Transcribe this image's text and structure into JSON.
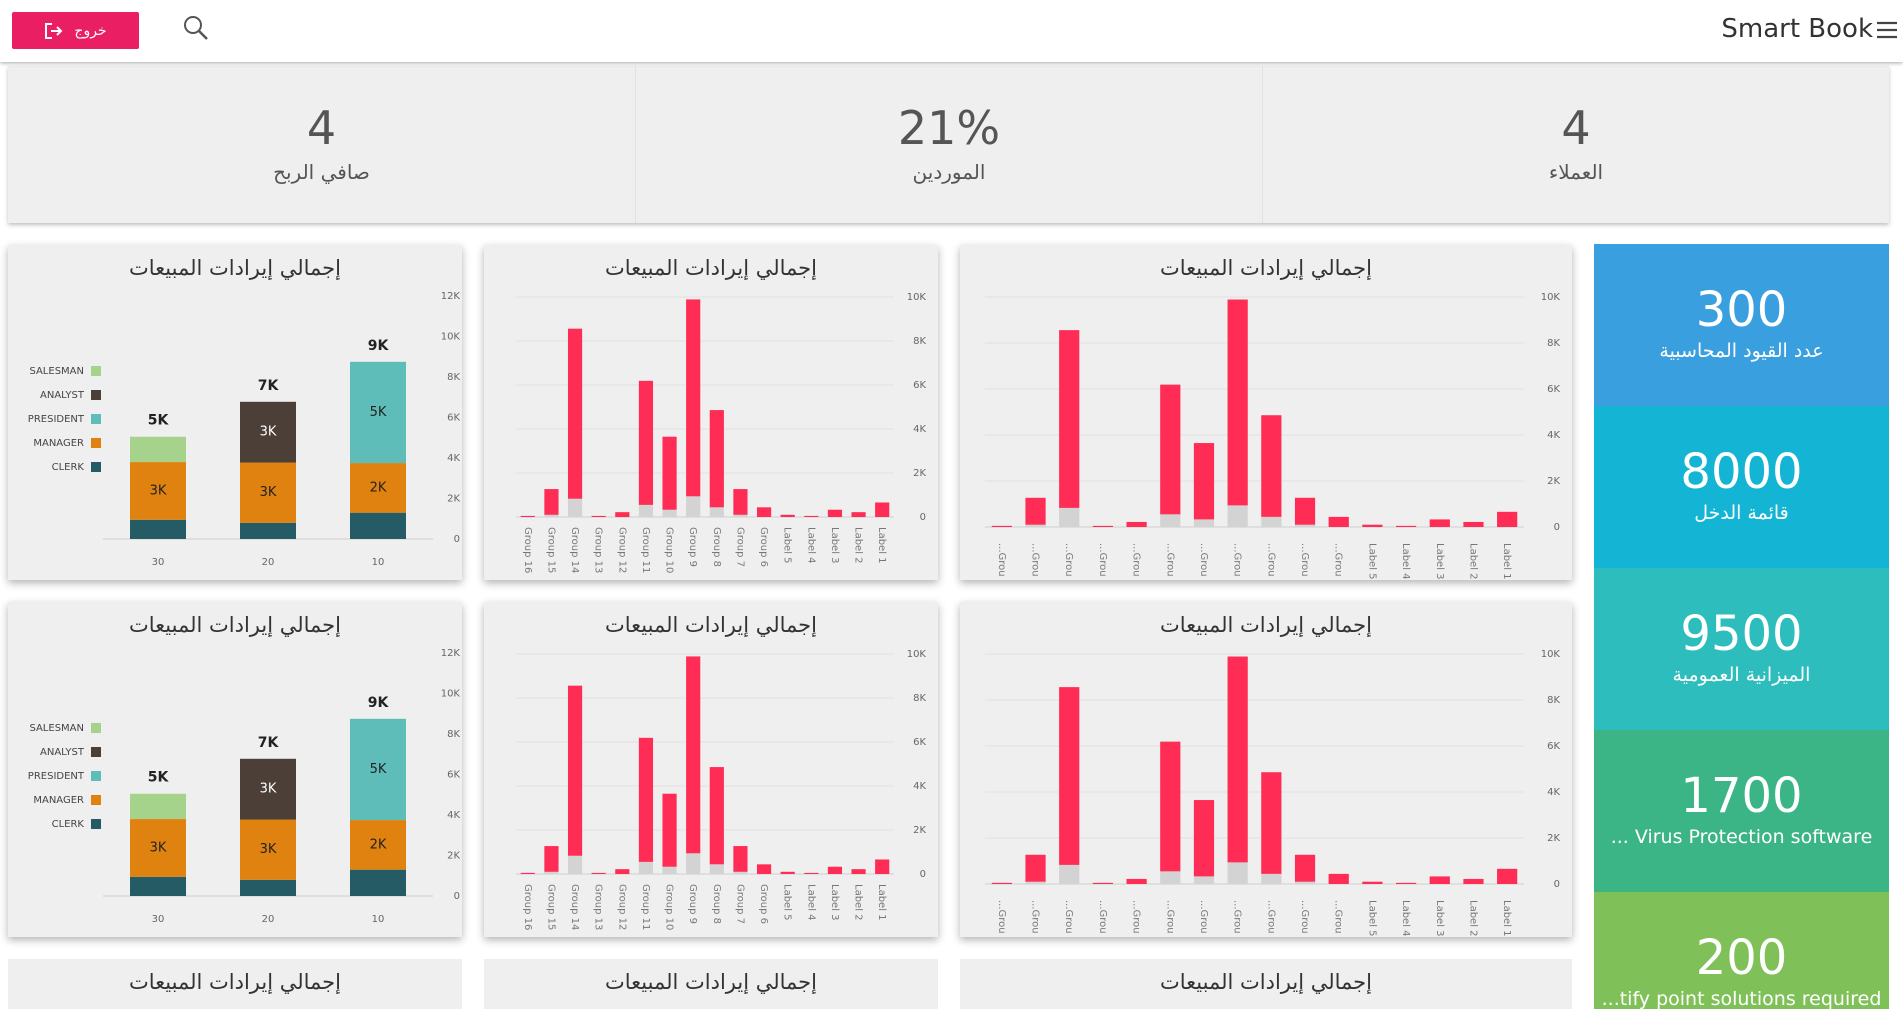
{
  "header": {
    "brand": "Smart Book",
    "logout": "خروج"
  },
  "stats": [
    {
      "value": "4",
      "label": "صافي الربح"
    },
    {
      "value": "21%",
      "label": "الموردين"
    },
    {
      "value": "4",
      "label": "العملاء"
    }
  ],
  "tiles": [
    {
      "value": "300",
      "label": "عدد القيود المحاسبية",
      "color": "#3a9fdf"
    },
    {
      "value": "8000",
      "label": "قائمة الدخل",
      "color": "#14b4d4"
    },
    {
      "value": "9500",
      "label": "الميزانية العمومية",
      "color": "#2ebdbd"
    },
    {
      "value": "1700",
      "label": "... Virus Protection software",
      "color": "#3bb586"
    },
    {
      "value": "200",
      "label": "...tify point solutions required",
      "color": "#7fc158"
    }
  ],
  "chart_data": [
    {
      "type": "stacked_bar",
      "title": "إجمالي إيرادات المبيعات",
      "categories": [
        "30",
        "20",
        "10"
      ],
      "series": [
        {
          "name": "CLERK",
          "color": "#245b64",
          "values": [
            950,
            800,
            1300
          ]
        },
        {
          "name": "MANAGER",
          "color": "#e0820f",
          "values": [
            2850,
            2975,
            2450
          ],
          "value_labels": [
            "3K",
            "3K",
            "2K"
          ]
        },
        {
          "name": "PRESIDENT",
          "color": "#5fbdb9",
          "values": [
            null,
            null,
            5000
          ],
          "value_labels": [
            null,
            null,
            "5K"
          ]
        },
        {
          "name": "ANALYST",
          "color": "#4b3f37",
          "values": [
            null,
            3000,
            null
          ],
          "value_labels": [
            null,
            "3K",
            null
          ]
        },
        {
          "name": "SALESMAN",
          "color": "#a5d38b",
          "values": [
            1250,
            null,
            null
          ]
        }
      ],
      "total_labels": [
        "5K",
        "7K",
        "9K"
      ],
      "ylim": [
        0,
        12000
      ],
      "yticks": [
        0,
        {
          "value": 2000,
          "label": "2K"
        },
        {
          "value": 4000,
          "label": "4K"
        },
        {
          "value": 6000,
          "label": "6K"
        },
        {
          "value": 8000,
          "label": "8K"
        },
        {
          "value": 10000,
          "label": "10K"
        },
        {
          "value": 12000,
          "label": "12K"
        }
      ],
      "grid": false,
      "legend": "left"
    },
    {
      "type": "bar",
      "title": "إجمالي إيرادات المبيعات",
      "categories": [
        "Group 16",
        "Group 15",
        "Group 14",
        "Group 13",
        "Group 12",
        "Group 11",
        "Group 10",
        "Group 9",
        "Group 8",
        "Group 7",
        "Group 6",
        "Label 5",
        "Label 4",
        "Label 3",
        "Label 2",
        "Label 1"
      ],
      "series": [
        {
          "color": "#d3d3d3",
          "values": [
            0,
            100,
            830,
            0,
            0,
            550,
            330,
            940,
            440,
            100,
            0,
            0,
            0,
            0,
            0,
            0
          ]
        },
        {
          "color": "#ff2d55",
          "values": [
            50,
            1170,
            7730,
            50,
            220,
            5640,
            3320,
            8950,
            4420,
            1170,
            440,
            100,
            50,
            330,
            220,
            660
          ]
        }
      ],
      "ylim": [
        0,
        10000
      ],
      "yticks": [
        0,
        {
          "value": 2000,
          "label": "2K"
        },
        {
          "value": 4000,
          "label": "4K"
        },
        {
          "value": 6000,
          "label": "6K"
        },
        {
          "value": 8000,
          "label": "8K"
        },
        {
          "value": 10000,
          "label": "10K"
        }
      ],
      "grid": true
    },
    {
      "type": "bar",
      "title": "إجمالي إيرادات المبيعات",
      "categories": [
        "...Grou",
        "...Grou",
        "...Grou",
        "...Grou",
        "...Grou",
        "...Grou",
        "...Grou",
        "...Grou",
        "...Grou",
        "...Grou",
        "...Grou",
        "Label 5",
        "Label 4",
        "Label 3",
        "Label 2",
        "Label 1"
      ],
      "series": [
        {
          "color": "#d3d3d3",
          "values": [
            0,
            100,
            830,
            0,
            0,
            550,
            330,
            940,
            440,
            100,
            0,
            0,
            0,
            0,
            0,
            0
          ]
        },
        {
          "color": "#ff2d55",
          "values": [
            50,
            1170,
            7730,
            50,
            220,
            5640,
            3320,
            8950,
            4420,
            1170,
            440,
            100,
            50,
            330,
            220,
            660
          ]
        }
      ],
      "ylim": [
        0,
        10000
      ],
      "yticks": [
        0,
        {
          "value": 2000,
          "label": "2K"
        },
        {
          "value": 4000,
          "label": "4K"
        },
        {
          "value": 6000,
          "label": "6K"
        },
        {
          "value": 8000,
          "label": "8K"
        },
        {
          "value": 10000,
          "label": "10K"
        }
      ],
      "grid": true
    },
    {
      "type": "stacked_bar",
      "title": "إجمالي إيرادات المبيعات",
      "categories": [
        "30",
        "20",
        "10"
      ],
      "series": [
        {
          "name": "CLERK",
          "color": "#245b64",
          "values": [
            950,
            800,
            1300
          ]
        },
        {
          "name": "MANAGER",
          "color": "#e0820f",
          "values": [
            2850,
            2975,
            2450
          ],
          "value_labels": [
            "3K",
            "3K",
            "2K"
          ]
        },
        {
          "name": "PRESIDENT",
          "color": "#5fbdb9",
          "values": [
            null,
            null,
            5000
          ],
          "value_labels": [
            null,
            null,
            "5K"
          ]
        },
        {
          "name": "ANALYST",
          "color": "#4b3f37",
          "values": [
            null,
            3000,
            null
          ],
          "value_labels": [
            null,
            "3K",
            null
          ]
        },
        {
          "name": "SALESMAN",
          "color": "#a5d38b",
          "values": [
            1250,
            null,
            null
          ]
        }
      ],
      "total_labels": [
        "5K",
        "7K",
        "9K"
      ],
      "ylim": [
        0,
        12000
      ],
      "yticks": [
        0,
        {
          "value": 2000,
          "label": "2K"
        },
        {
          "value": 4000,
          "label": "4K"
        },
        {
          "value": 6000,
          "label": "6K"
        },
        {
          "value": 8000,
          "label": "8K"
        },
        {
          "value": 10000,
          "label": "10K"
        },
        {
          "value": 12000,
          "label": "12K"
        }
      ],
      "grid": false,
      "legend": "left"
    },
    {
      "type": "bar",
      "title": "إجمالي إيرادات المبيعات",
      "categories": [
        "Group 16",
        "Group 15",
        "Group 14",
        "Group 13",
        "Group 12",
        "Group 11",
        "Group 10",
        "Group 9",
        "Group 8",
        "Group 7",
        "Group 6",
        "Label 5",
        "Label 4",
        "Label 3",
        "Label 2",
        "Label 1"
      ],
      "series": [
        {
          "color": "#d3d3d3",
          "values": [
            0,
            100,
            830,
            0,
            0,
            550,
            330,
            940,
            440,
            100,
            0,
            0,
            0,
            0,
            0,
            0
          ]
        },
        {
          "color": "#ff2d55",
          "values": [
            50,
            1170,
            7730,
            50,
            220,
            5640,
            3320,
            8950,
            4420,
            1170,
            440,
            100,
            50,
            330,
            220,
            660
          ]
        }
      ],
      "ylim": [
        0,
        10000
      ],
      "yticks": [
        0,
        {
          "value": 2000,
          "label": "2K"
        },
        {
          "value": 4000,
          "label": "4K"
        },
        {
          "value": 6000,
          "label": "6K"
        },
        {
          "value": 8000,
          "label": "8K"
        },
        {
          "value": 10000,
          "label": "10K"
        }
      ],
      "grid": true
    },
    {
      "type": "bar",
      "title": "إجمالي إيرادات المبيعات",
      "categories": [
        "...Grou",
        "...Grou",
        "...Grou",
        "...Grou",
        "...Grou",
        "...Grou",
        "...Grou",
        "...Grou",
        "...Grou",
        "...Grou",
        "...Grou",
        "Label 5",
        "Label 4",
        "Label 3",
        "Label 2",
        "Label 1"
      ],
      "series": [
        {
          "color": "#d3d3d3",
          "values": [
            0,
            100,
            830,
            0,
            0,
            550,
            330,
            940,
            440,
            100,
            0,
            0,
            0,
            0,
            0,
            0
          ]
        },
        {
          "color": "#ff2d55",
          "values": [
            50,
            1170,
            7730,
            50,
            220,
            5640,
            3320,
            8950,
            4420,
            1170,
            440,
            100,
            50,
            330,
            220,
            660
          ]
        }
      ],
      "ylim": [
        0,
        10000
      ],
      "yticks": [
        0,
        {
          "value": 2000,
          "label": "2K"
        },
        {
          "value": 4000,
          "label": "4K"
        },
        {
          "value": 6000,
          "label": "6K"
        },
        {
          "value": 8000,
          "label": "8K"
        },
        {
          "value": 10000,
          "label": "10K"
        }
      ],
      "grid": true
    }
  ],
  "partial_panels": [
    {
      "title": "إجمالي إيرادات المبيعات"
    },
    {
      "title": "إجمالي إيرادات المبيعات"
    },
    {
      "title": "إجمالي إيرادات المبيعات"
    }
  ]
}
